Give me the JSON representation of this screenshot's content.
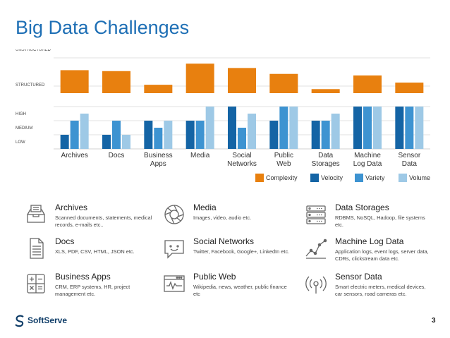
{
  "page": {
    "title": "Big Data Challenges",
    "page_number": "3",
    "brand": "SoftServe"
  },
  "colors": {
    "complexity": "#e8800f",
    "velocity": "#1464a5",
    "variety": "#3d93d1",
    "volume": "#9ec9e6",
    "title": "#1e6fb5"
  },
  "chart_data": {
    "type": "bar",
    "categories": [
      [
        "Archives"
      ],
      [
        "Docs"
      ],
      [
        "Business",
        "Apps"
      ],
      [
        "Media"
      ],
      [
        "Social",
        "Networks"
      ],
      [
        "Public",
        "Web"
      ],
      [
        "Data",
        "Storages"
      ],
      [
        "Machine",
        "Log Data"
      ],
      [
        "Sensor",
        "Data"
      ]
    ],
    "complexity_axis": {
      "labels": [
        "UNSTRUCTURED",
        "STRUCTURED"
      ]
    },
    "vvv_axis": {
      "labels": [
        "HIGH",
        "MEDIUM",
        "LOW"
      ],
      "range": [
        0,
        3
      ]
    },
    "series": [
      {
        "name": "Complexity",
        "key": "complexity",
        "values": [
          0.74,
          0.71,
          0.27,
          0.95,
          0.81,
          0.62,
          0.13,
          0.57,
          0.34
        ]
      },
      {
        "name": "Velocity",
        "key": "velocity",
        "values": [
          1,
          1,
          2,
          2,
          3,
          2,
          2,
          3,
          3
        ]
      },
      {
        "name": "Variety",
        "key": "variety",
        "values": [
          2,
          2,
          1.5,
          2,
          1.5,
          3,
          2,
          3,
          3
        ]
      },
      {
        "name": "Volume",
        "key": "volume",
        "values": [
          2.5,
          1,
          2,
          3,
          2.5,
          3,
          2.5,
          3,
          3
        ]
      }
    ],
    "legend": [
      "Complexity",
      "Velocity",
      "Variety",
      "Volume"
    ],
    "legend_position": "bottom-right"
  },
  "items": [
    {
      "icon": "archive-icon",
      "title": "Archives",
      "desc": "Scanned documents, statements, medical records, e-mails etc.."
    },
    {
      "icon": "camera-icon",
      "title": "Media",
      "desc": "Images, video, audio etc."
    },
    {
      "icon": "server-icon",
      "title": "Data Storages",
      "desc": "RDBMS, NoSQL, Hadoop, file systems etc."
    },
    {
      "icon": "document-icon",
      "title": "Docs",
      "desc": "XLS, PDF, CSV, HTML, JSON etc."
    },
    {
      "icon": "chat-icon",
      "title": "Social Networks",
      "desc": "Twitter, Facebook, Google+, LinkedIn etc."
    },
    {
      "icon": "line-chart-icon",
      "title": "Machine Log Data",
      "desc": "Application logs, event logs, server data, CDRs, clickstream data etc."
    },
    {
      "icon": "calculator-icon",
      "title": "Business Apps",
      "desc": "CRM, ERP systems, HR, project management etc."
    },
    {
      "icon": "browser-icon",
      "title": "Public Web",
      "desc": "Wikipedia, news, weather, public finance etc"
    },
    {
      "icon": "sensor-icon",
      "title": "Sensor Data",
      "desc": "Smart electric meters, medical devices, car sensors, road cameras etc."
    }
  ]
}
